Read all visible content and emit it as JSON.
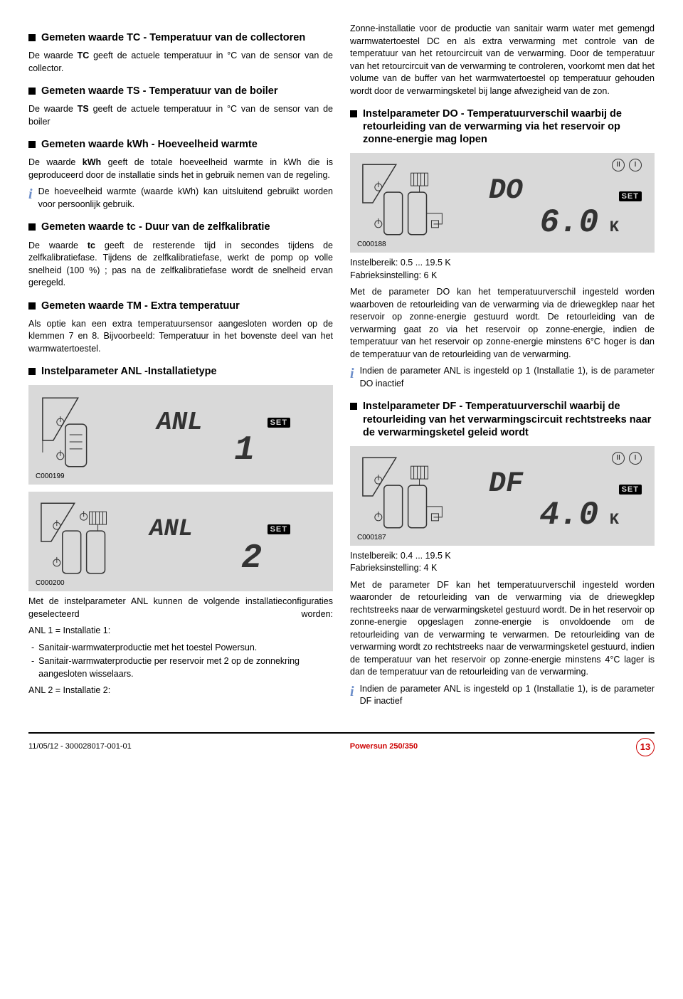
{
  "left": {
    "tc_heading": "Gemeten waarde TC - Temperatuur van de collectoren",
    "tc_body": "De waarde <b>TC</b> geeft de actuele temperatuur in °C van de sensor van de collector.",
    "ts_heading": "Gemeten waarde TS - Temperatuur van de boiler",
    "ts_body": "De waarde <b>TS</b> geeft de actuele temperatuur in °C van de sensor van de boiler",
    "kwh_heading": "Gemeten waarde kWh - Hoeveelheid warmte",
    "kwh_body": "De waarde <b>kWh</b> geeft de totale hoeveelheid warmte in kWh die is geproduceerd door de installatie sinds het in gebruik nemen van de regeling.",
    "kwh_info": "De hoeveelheid warmte (waarde kWh) kan uitsluitend gebruikt worden voor persoonlijk gebruik.",
    "tc2_heading": "Gemeten waarde tc - Duur van de zelfkalibratie",
    "tc2_body": "De waarde <b>tc</b> geeft de resterende tijd in secondes tijdens de zelfkalibratiefase. Tijdens de zelfkalibratiefase, werkt de pomp op volle snelheid (100 %) ; pas na de zelfkalibratiefase wordt de snelheid ervan geregeld.",
    "tm_heading": "Gemeten waarde TM - Extra temperatuur",
    "tm_body": "Als optie kan een extra temperatuursensor aangesloten worden op de klemmen 7 en 8. Bijvoorbeeld: Temperatuur in het bovenste deel van het warmwatertoestel.",
    "anl_heading": "Instelparameter ANL -Installatietype",
    "fig1_caption": "C000199",
    "fig2_caption": "C000200",
    "anl_body": "Met de instelparameter ANL kunnen de volgende installatieconfiguraties geselecteerd worden:",
    "anl1_label": "ANL 1 = Installatie 1:",
    "anl1_item1": "Sanitair-warmwaterproductie met het toestel Powersun.",
    "anl1_item2": "Sanitair-warmwaterproductie per reservoir met 2 op de zonnekring aangesloten wisselaars.",
    "anl2_label": "ANL 2 = Installatie 2:"
  },
  "right": {
    "intro": "Zonne-installatie voor de productie van sanitair warm water met gemengd warmwatertoestel DC en als extra verwarming met controle van de temperatuur van het retourcircuit van de verwarming. Door de temperatuur van het retourcircuit van de verwarming te controleren, voorkomt men dat het volume van de buffer van het warmwatertoestel op temperatuur gehouden wordt door de verwarmingsketel bij lange afwezigheid van de zon.",
    "do_heading": "Instelparameter DO - Temperatuurverschil waarbij de retourleiding van de verwarming via het reservoir op zonne-energie mag lopen",
    "fig_do_caption": "C000188",
    "do_range": "Instelbereik: 0.5 ... 19.5 K",
    "do_default": "Fabrieksinstelling: 6 K",
    "do_body": "Met de parameter DO kan het temperatuurverschil ingesteld worden waarboven de retourleiding van de verwarming via de driewegklep naar het reservoir op zonne-energie gestuurd wordt. De retourleiding van de verwarming gaat zo via het reservoir op zonne-energie, indien de temperatuur van het reservoir op zonne-energie minstens 6°C hoger is dan de temperatuur van de retourleiding van de verwarming.",
    "do_info": "Indien de parameter ANL is ingesteld op 1 (Installatie 1), is de parameter DO inactief",
    "df_heading": "Instelparameter DF - Temperatuurverschil waarbij de retourleiding van het verwarmingscircuit rechtstreeks naar de verwarmingsketel geleid wordt",
    "fig_df_caption": "C000187",
    "df_range": "Instelbereik: 0.4 ... 19.5 K",
    "df_default": "Fabrieksinstelling: 4 K",
    "df_body": "Met de parameter DF kan het temperatuurverschil ingesteld worden waaronder de retourleiding van de verwarming via de driewegklep rechtstreeks naar de verwarmingsketel gestuurd wordt. De in het reservoir op zonne-energie opgeslagen zonne-energie is onvoldoende om de retourleiding van de verwarming te verwarmen. De retourleiding van de verwarming wordt zo rechtstreeks naar de verwarmingsketel gestuurd, indien de temperatuur van het reservoir op zonne-energie minstens 4°C lager is dan de temperatuur van de retourleiding van de verwarming.",
    "df_info": "Indien de parameter ANL is ingesteld op 1 (Installatie 1), is de parameter DF inactief"
  },
  "footer": {
    "date": "11/05/12 - 300028017-001-01",
    "product": "Powersun 250/350",
    "page": "13"
  },
  "display": {
    "anl1_label": "ANL",
    "anl1_value": "1",
    "anl2_label": "ANL",
    "anl2_value": "2",
    "do_label": "DO",
    "do_value": "6.0",
    "do_unit": "K",
    "df_label": "DF",
    "df_value": "4.0",
    "df_unit": "K",
    "set_text": "SET",
    "II": "II",
    "I": "I"
  }
}
